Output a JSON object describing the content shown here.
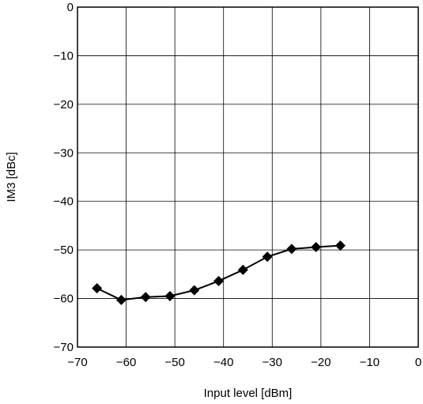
{
  "chart_data": {
    "type": "line",
    "title": "",
    "xlabel": "Input level [dBm]",
    "ylabel": "IM3 [dBc]",
    "xlim": [
      -70,
      0
    ],
    "ylim": [
      -70,
      0
    ],
    "grid": true,
    "xticks": [
      -70,
      -60,
      -50,
      -40,
      -30,
      -20,
      -10,
      0
    ],
    "yticks": [
      0,
      -10,
      -20,
      -30,
      -40,
      -50,
      -60,
      -70
    ],
    "xtick_labels": [
      "−70",
      "−60",
      "−50",
      "−40",
      "−30",
      "−20",
      "−10",
      "0"
    ],
    "ytick_labels": [
      "0",
      "−10",
      "−20",
      "−30",
      "−40",
      "−50",
      "−60",
      "−70"
    ],
    "series": [
      {
        "marker": "diamond",
        "color": "#000000",
        "x": [
          -66,
          -61,
          -56,
          -51,
          -46,
          -41,
          -36,
          -31,
          -26,
          -21,
          -16
        ],
        "y": [
          -57.9,
          -60.3,
          -59.7,
          -59.5,
          -58.3,
          -56.4,
          -54.1,
          -51.4,
          -49.8,
          -49.4,
          -49.1
        ]
      }
    ]
  }
}
